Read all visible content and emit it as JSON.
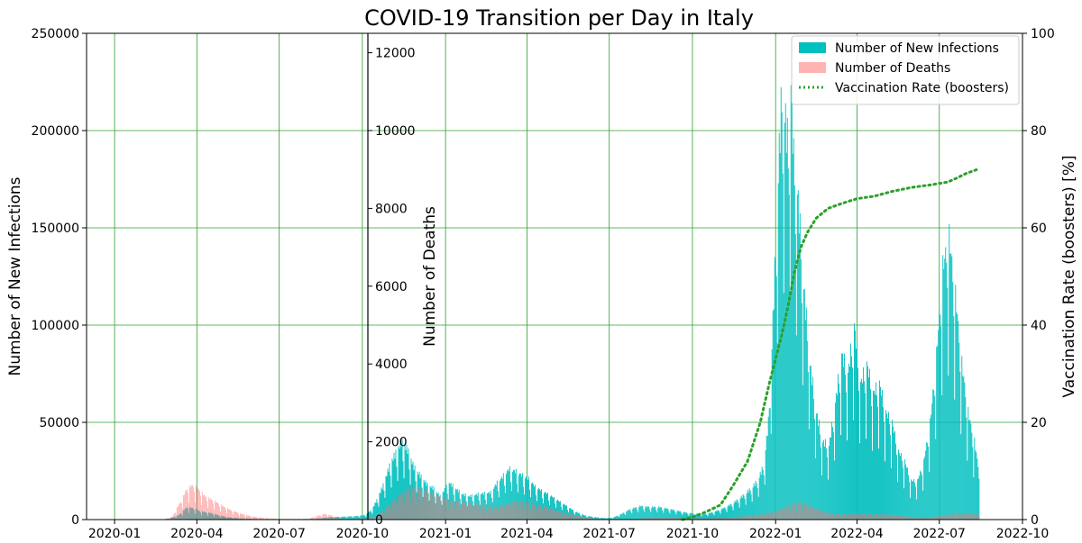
{
  "chart_data": {
    "type": "bar",
    "title": "COVID-19 Transition per Day in Italy",
    "xlabel": "",
    "x_ticks": [
      "2020-01",
      "2020-04",
      "2020-07",
      "2020-10",
      "2021-01",
      "2021-04",
      "2021-07",
      "2021-10",
      "2022-01",
      "2022-04",
      "2022-07",
      "2022-10"
    ],
    "x_range": [
      "2019-12-01",
      "2022-10-01"
    ],
    "grid": true,
    "grid_color": "#2ca02c",
    "legend_position": "top-right",
    "axes": {
      "infections": {
        "label": "Number of New Infections",
        "ylim": [
          0,
          250000
        ],
        "ticks": [
          0,
          50000,
          100000,
          150000,
          200000,
          250000
        ]
      },
      "deaths": {
        "label": "Number of Deaths",
        "ylim": [
          0,
          12500
        ],
        "ticks": [
          0,
          2000,
          4000,
          6000,
          8000,
          10000,
          12000
        ]
      },
      "vaccination": {
        "label": "Vaccination Rate (boosters) [%]",
        "ylim": [
          0,
          100
        ],
        "ticks": [
          0,
          20,
          40,
          60,
          80,
          100
        ]
      }
    },
    "series": [
      {
        "name": "Number of New Infections",
        "axis": "infections",
        "kind": "bar",
        "color": "#00bfbf",
        "points": [
          [
            "2020-02-21",
            50
          ],
          [
            "2020-03-01",
            500
          ],
          [
            "2020-03-10",
            1800
          ],
          [
            "2020-03-15",
            3500
          ],
          [
            "2020-03-21",
            6500
          ],
          [
            "2020-03-28",
            5900
          ],
          [
            "2020-04-05",
            4300
          ],
          [
            "2020-04-15",
            3500
          ],
          [
            "2020-04-25",
            2300
          ],
          [
            "2020-05-05",
            1200
          ],
          [
            "2020-05-20",
            600
          ],
          [
            "2020-06-10",
            300
          ],
          [
            "2020-07-01",
            200
          ],
          [
            "2020-07-20",
            250
          ],
          [
            "2020-08-10",
            400
          ],
          [
            "2020-08-25",
            1200
          ],
          [
            "2020-09-10",
            1500
          ],
          [
            "2020-09-25",
            1800
          ],
          [
            "2020-10-05",
            2500
          ],
          [
            "2020-10-12",
            5500
          ],
          [
            "2020-10-18",
            11000
          ],
          [
            "2020-10-25",
            19000
          ],
          [
            "2020-11-01",
            29000
          ],
          [
            "2020-11-08",
            35000
          ],
          [
            "2020-11-13",
            40000
          ],
          [
            "2020-11-20",
            36000
          ],
          [
            "2020-11-27",
            27000
          ],
          [
            "2020-12-05",
            22000
          ],
          [
            "2020-12-12",
            18000
          ],
          [
            "2020-12-19",
            16000
          ],
          [
            "2020-12-26",
            12000
          ],
          [
            "2021-01-05",
            19000
          ],
          [
            "2021-01-12",
            16000
          ],
          [
            "2021-01-20",
            13000
          ],
          [
            "2021-01-27",
            12000
          ],
          [
            "2021-02-05",
            13000
          ],
          [
            "2021-02-12",
            13500
          ],
          [
            "2021-02-20",
            14000
          ],
          [
            "2021-02-27",
            19000
          ],
          [
            "2021-03-05",
            22000
          ],
          [
            "2021-03-12",
            26000
          ],
          [
            "2021-03-19",
            25000
          ],
          [
            "2021-03-26",
            23000
          ],
          [
            "2021-04-03",
            21000
          ],
          [
            "2021-04-10",
            17000
          ],
          [
            "2021-04-17",
            15000
          ],
          [
            "2021-04-25",
            13000
          ],
          [
            "2021-05-05",
            10000
          ],
          [
            "2021-05-15",
            7000
          ],
          [
            "2021-05-25",
            4000
          ],
          [
            "2021-06-05",
            2000
          ],
          [
            "2021-06-15",
            1300
          ],
          [
            "2021-06-25",
            800
          ],
          [
            "2021-07-05",
            1000
          ],
          [
            "2021-07-15",
            3000
          ],
          [
            "2021-07-25",
            5500
          ],
          [
            "2021-08-05",
            7000
          ],
          [
            "2021-08-15",
            6500
          ],
          [
            "2021-08-25",
            6500
          ],
          [
            "2021-09-05",
            5500
          ],
          [
            "2021-09-15",
            4500
          ],
          [
            "2021-09-25",
            3500
          ],
          [
            "2021-10-05",
            3000
          ],
          [
            "2021-10-15",
            2800
          ],
          [
            "2021-10-25",
            4000
          ],
          [
            "2021-11-05",
            6000
          ],
          [
            "2021-11-15",
            8500
          ],
          [
            "2021-11-25",
            12000
          ],
          [
            "2021-12-05",
            16000
          ],
          [
            "2021-12-12",
            20000
          ],
          [
            "2021-12-19",
            28000
          ],
          [
            "2021-12-24",
            50000
          ],
          [
            "2021-12-28",
            90000
          ],
          [
            "2022-01-01",
            140000
          ],
          [
            "2022-01-05",
            190000
          ],
          [
            "2022-01-08",
            220000
          ],
          [
            "2022-01-12",
            205000
          ],
          [
            "2022-01-15",
            190000
          ],
          [
            "2022-01-18",
            228000
          ],
          [
            "2022-01-21",
            185000
          ],
          [
            "2022-01-25",
            170000
          ],
          [
            "2022-02-01",
            120000
          ],
          [
            "2022-02-08",
            80000
          ],
          [
            "2022-02-15",
            55000
          ],
          [
            "2022-02-22",
            40000
          ],
          [
            "2022-03-01",
            38000
          ],
          [
            "2022-03-08",
            60000
          ],
          [
            "2022-03-15",
            85000
          ],
          [
            "2022-03-22",
            75000
          ],
          [
            "2022-03-29",
            100000
          ],
          [
            "2022-04-05",
            70000
          ],
          [
            "2022-04-12",
            80000
          ],
          [
            "2022-04-19",
            65000
          ],
          [
            "2022-04-26",
            70000
          ],
          [
            "2022-05-03",
            55000
          ],
          [
            "2022-05-10",
            50000
          ],
          [
            "2022-05-17",
            35000
          ],
          [
            "2022-05-24",
            30000
          ],
          [
            "2022-05-31",
            20000
          ],
          [
            "2022-06-07",
            20000
          ],
          [
            "2022-06-14",
            30000
          ],
          [
            "2022-06-21",
            50000
          ],
          [
            "2022-06-28",
            85000
          ],
          [
            "2022-07-05",
            130000
          ],
          [
            "2022-07-12",
            145000
          ],
          [
            "2022-07-19",
            115000
          ],
          [
            "2022-07-26",
            80000
          ],
          [
            "2022-08-02",
            55000
          ],
          [
            "2022-08-09",
            40000
          ],
          [
            "2022-08-14",
            25000
          ]
        ]
      },
      {
        "name": "Number of Deaths",
        "axis": "deaths",
        "kind": "bar",
        "color": "#ff6b6b",
        "points": [
          [
            "2020-02-25",
            5
          ],
          [
            "2020-03-05",
            80
          ],
          [
            "2020-03-10",
            300
          ],
          [
            "2020-03-15",
            500
          ],
          [
            "2020-03-21",
            800
          ],
          [
            "2020-03-27",
            880
          ],
          [
            "2020-04-03",
            780
          ],
          [
            "2020-04-10",
            600
          ],
          [
            "2020-04-17",
            520
          ],
          [
            "2020-04-24",
            430
          ],
          [
            "2020-05-01",
            330
          ],
          [
            "2020-05-10",
            230
          ],
          [
            "2020-05-20",
            150
          ],
          [
            "2020-06-01",
            80
          ],
          [
            "2020-06-15",
            40
          ],
          [
            "2020-07-01",
            20
          ],
          [
            "2020-08-01",
            15
          ],
          [
            "2020-08-21",
            150
          ],
          [
            "2020-09-10",
            15
          ],
          [
            "2020-10-01",
            30
          ],
          [
            "2020-10-15",
            80
          ],
          [
            "2020-10-25",
            250
          ],
          [
            "2020-11-05",
            500
          ],
          [
            "2020-11-15",
            700
          ],
          [
            "2020-11-25",
            820
          ],
          [
            "2020-12-05",
            800
          ],
          [
            "2020-12-15",
            700
          ],
          [
            "2020-12-25",
            580
          ],
          [
            "2021-01-05",
            500
          ],
          [
            "2021-01-15",
            480
          ],
          [
            "2021-01-25",
            450
          ],
          [
            "2021-02-05",
            380
          ],
          [
            "2021-02-15",
            320
          ],
          [
            "2021-02-25",
            340
          ],
          [
            "2021-03-05",
            380
          ],
          [
            "2021-03-15",
            450
          ],
          [
            "2021-03-25",
            470
          ],
          [
            "2021-04-05",
            430
          ],
          [
            "2021-04-15",
            390
          ],
          [
            "2021-04-25",
            320
          ],
          [
            "2021-05-05",
            230
          ],
          [
            "2021-05-15",
            160
          ],
          [
            "2021-05-25",
            110
          ],
          [
            "2021-06-05",
            60
          ],
          [
            "2021-06-15",
            30
          ],
          [
            "2021-06-25",
            20
          ],
          [
            "2021-07-15",
            15
          ],
          [
            "2021-08-01",
            25
          ],
          [
            "2021-08-15",
            50
          ],
          [
            "2021-09-01",
            55
          ],
          [
            "2021-09-15",
            50
          ],
          [
            "2021-10-01",
            40
          ],
          [
            "2021-10-15",
            35
          ],
          [
            "2021-11-01",
            50
          ],
          [
            "2021-11-15",
            70
          ],
          [
            "2021-12-01",
            100
          ],
          [
            "2021-12-15",
            140
          ],
          [
            "2022-01-01",
            200
          ],
          [
            "2022-01-10",
            320
          ],
          [
            "2022-01-20",
            420
          ],
          [
            "2022-01-27",
            440
          ],
          [
            "2022-02-05",
            380
          ],
          [
            "2022-02-15",
            280
          ],
          [
            "2022-02-25",
            200
          ],
          [
            "2022-03-10",
            150
          ],
          [
            "2022-03-25",
            140
          ],
          [
            "2022-04-10",
            160
          ],
          [
            "2022-04-25",
            150
          ],
          [
            "2022-05-10",
            120
          ],
          [
            "2022-05-25",
            90
          ],
          [
            "2022-06-10",
            60
          ],
          [
            "2022-06-25",
            70
          ],
          [
            "2022-07-10",
            130
          ],
          [
            "2022-07-25",
            170
          ],
          [
            "2022-08-05",
            160
          ],
          [
            "2022-08-14",
            120
          ]
        ]
      },
      {
        "name": "Vaccination Rate (boosters)",
        "axis": "vaccination",
        "kind": "line",
        "color": "#2ca02c",
        "style": "dotted",
        "points": [
          [
            "2021-09-20",
            0
          ],
          [
            "2021-10-01",
            0.5
          ],
          [
            "2021-10-15",
            1.5
          ],
          [
            "2021-11-01",
            3
          ],
          [
            "2021-11-15",
            7
          ],
          [
            "2021-12-01",
            12
          ],
          [
            "2021-12-15",
            20
          ],
          [
            "2021-12-25",
            28
          ],
          [
            "2022-01-01",
            33
          ],
          [
            "2022-01-08",
            38
          ],
          [
            "2022-01-15",
            44
          ],
          [
            "2022-01-22",
            51
          ],
          [
            "2022-01-29",
            56
          ],
          [
            "2022-02-05",
            59
          ],
          [
            "2022-02-15",
            62
          ],
          [
            "2022-02-28",
            64
          ],
          [
            "2022-03-15",
            65
          ],
          [
            "2022-04-01",
            66
          ],
          [
            "2022-04-20",
            66.5
          ],
          [
            "2022-05-10",
            67.5
          ],
          [
            "2022-05-31",
            68.3
          ],
          [
            "2022-06-20",
            68.8
          ],
          [
            "2022-07-10",
            69.4
          ],
          [
            "2022-07-20",
            70.2
          ],
          [
            "2022-07-31",
            71.2
          ],
          [
            "2022-08-12",
            72
          ]
        ]
      }
    ]
  }
}
